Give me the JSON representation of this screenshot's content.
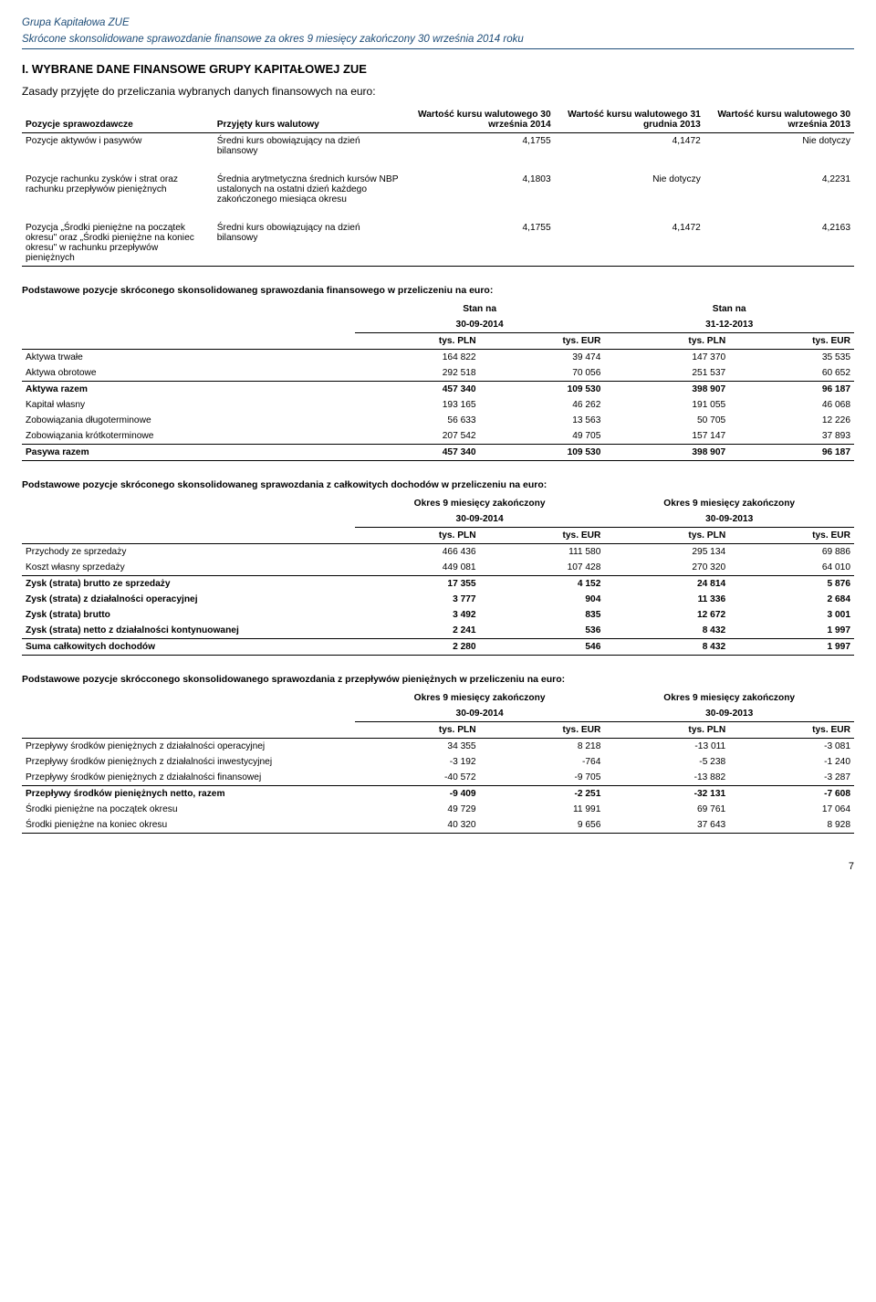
{
  "header": {
    "line1": "Grupa Kapitałowa ZUE",
    "line2": "Skrócone skonsolidowane sprawozdanie finansowe za okres 9 miesięcy zakończony 30 września 2014 roku"
  },
  "section_title": "I.    WYBRANE DANE FINANSOWE GRUPY KAPITAŁOWEJ ZUE",
  "subtitle": "Zasady przyjęte do przeliczania wybranych danych finansowych na euro:",
  "rates_table": {
    "headers": {
      "c1": "Pozycje sprawozdawcze",
      "c2": "Przyjęty kurs walutowy",
      "c3": "Wartość kursu walutowego 30 września 2014",
      "c4": "Wartość kursu walutowego 31 grudnia 2013",
      "c5": "Wartość kursu walutowego 30 września 2013"
    },
    "rows": [
      {
        "c1": "Pozycje aktywów i pasywów",
        "c2": "Średni kurs obowiązujący na dzień bilansowy",
        "c3": "4,1755",
        "c4": "4,1472",
        "c5": "Nie dotyczy"
      },
      {
        "c1": "Pozycje rachunku zysków i strat oraz rachunku przepływów pieniężnych",
        "c2": "Średnia arytmetyczna średnich kursów NBP ustalonych na ostatni dzień każdego zakończonego miesiąca okresu",
        "c3": "4,1803",
        "c4": "Nie dotyczy",
        "c5": "4,2231"
      },
      {
        "c1": "Pozycja „Środki pieniężne na początek okresu\" oraz „Środki pieniężne na koniec okresu\" w rachunku przepływów pieniężnych",
        "c2": "Średni kurs obowiązujący na dzień bilansowy",
        "c3": "4,1755",
        "c4": "4,1472",
        "c5": "4,2163"
      }
    ]
  },
  "table1": {
    "caption": "Podstawowe pozycje skróconego skonsolidowaneg sprawozdania finansowego w przeliczeniu na euro:",
    "super_hdr": {
      "a": "Stan na",
      "b": "Stan na"
    },
    "dates": {
      "a": "30-09-2014",
      "b": "31-12-2013"
    },
    "cols": {
      "pln": "tys. PLN",
      "eur": "tys. EUR"
    },
    "rows": [
      {
        "l": "Aktywa trwałe",
        "a1": "164 822",
        "a2": "39 474",
        "b1": "147 370",
        "b2": "35 535"
      },
      {
        "l": "Aktywa obrotowe",
        "a1": "292 518",
        "a2": "70 056",
        "b1": "251 537",
        "b2": "60 652"
      },
      {
        "l": "Aktywa razem",
        "a1": "457 340",
        "a2": "109 530",
        "b1": "398 907",
        "b2": "96 187",
        "bold": true,
        "topline": true
      },
      {
        "l": "Kapitał własny",
        "a1": "193 165",
        "a2": "46 262",
        "b1": "191 055",
        "b2": "46 068"
      },
      {
        "l": "Zobowiązania długoterminowe",
        "a1": "56 633",
        "a2": "13 563",
        "b1": "50 705",
        "b2": "12 226"
      },
      {
        "l": "Zobowiązania krótkoterminowe",
        "a1": "207 542",
        "a2": "49 705",
        "b1": "157 147",
        "b2": "37 893"
      },
      {
        "l": "Pasywa razem",
        "a1": "457 340",
        "a2": "109 530",
        "b1": "398 907",
        "b2": "96 187",
        "bold": true,
        "topline": true,
        "botline": true
      }
    ]
  },
  "table2": {
    "caption": "Podstawowe pozycje skróconego skonsolidowaneg sprawozdania z całkowitych dochodów w przeliczeniu na euro:",
    "super_hdr": {
      "a": "Okres 9 miesięcy zakończony",
      "b": "Okres 9 miesięcy zakończony"
    },
    "dates": {
      "a": "30-09-2014",
      "b": "30-09-2013"
    },
    "cols": {
      "pln": "tys. PLN",
      "eur": "tys. EUR"
    },
    "rows": [
      {
        "l": "Przychody ze sprzedaży",
        "a1": "466 436",
        "a2": "111 580",
        "b1": "295 134",
        "b2": "69 886"
      },
      {
        "l": "Koszt własny sprzedaży",
        "a1": "449 081",
        "a2": "107 428",
        "b1": "270 320",
        "b2": "64 010"
      },
      {
        "l": "Zysk (strata) brutto ze sprzedaży",
        "a1": "17 355",
        "a2": "4 152",
        "b1": "24 814",
        "b2": "5 876",
        "bold": true,
        "topline": true
      },
      {
        "l": "Zysk (strata) z działalności operacyjnej",
        "a1": "3 777",
        "a2": "904",
        "b1": "11 336",
        "b2": "2 684",
        "bold": true
      },
      {
        "l": "Zysk (strata) brutto",
        "a1": "3 492",
        "a2": "835",
        "b1": "12 672",
        "b2": "3 001",
        "bold": true
      },
      {
        "l": "Zysk (strata) netto z działalności kontynuowanej",
        "a1": "2 241",
        "a2": "536",
        "b1": "8 432",
        "b2": "1 997",
        "bold": true
      },
      {
        "l": "Suma całkowitych dochodów",
        "a1": "2 280",
        "a2": "546",
        "b1": "8 432",
        "b2": "1 997",
        "bold": true,
        "topline": true,
        "botline": true
      }
    ]
  },
  "table3": {
    "caption": "Podstawowe pozycje skrócconego skonsolidowanego sprawozdania z przepływów pieniężnych w przeliczeniu na euro:",
    "super_hdr": {
      "a": "Okres 9 miesięcy zakończony",
      "b": "Okres 9 miesięcy zakończony"
    },
    "dates": {
      "a": "30-09-2014",
      "b": "30-09-2013"
    },
    "cols": {
      "pln": "tys. PLN",
      "eur": "tys. EUR"
    },
    "rows": [
      {
        "l": "Przepływy środków pieniężnych z działalności operacyjnej",
        "a1": "34 355",
        "a2": "8 218",
        "b1": "-13 011",
        "b2": "-3 081"
      },
      {
        "l": "Przepływy środków pieniężnych z działalności inwestycyjnej",
        "a1": "-3 192",
        "a2": "-764",
        "b1": "-5 238",
        "b2": "-1 240"
      },
      {
        "l": "Przepływy środków pieniężnych z działalności finansowej",
        "a1": "-40 572",
        "a2": "-9 705",
        "b1": "-13 882",
        "b2": "-3 287"
      },
      {
        "l": "Przepływy środków pieniężnych netto, razem",
        "a1": "-9 409",
        "a2": "-2 251",
        "b1": "-32 131",
        "b2": "-7 608",
        "bold": true,
        "topline": true
      },
      {
        "l": "Środki pieniężne na początek okresu",
        "a1": "49 729",
        "a2": "11 991",
        "b1": "69 761",
        "b2": "17 064"
      },
      {
        "l": "Środki pieniężne na koniec okresu",
        "a1": "40 320",
        "a2": "9 656",
        "b1": "37 643",
        "b2": "8 928",
        "botline": true
      }
    ]
  },
  "page_num": "7"
}
